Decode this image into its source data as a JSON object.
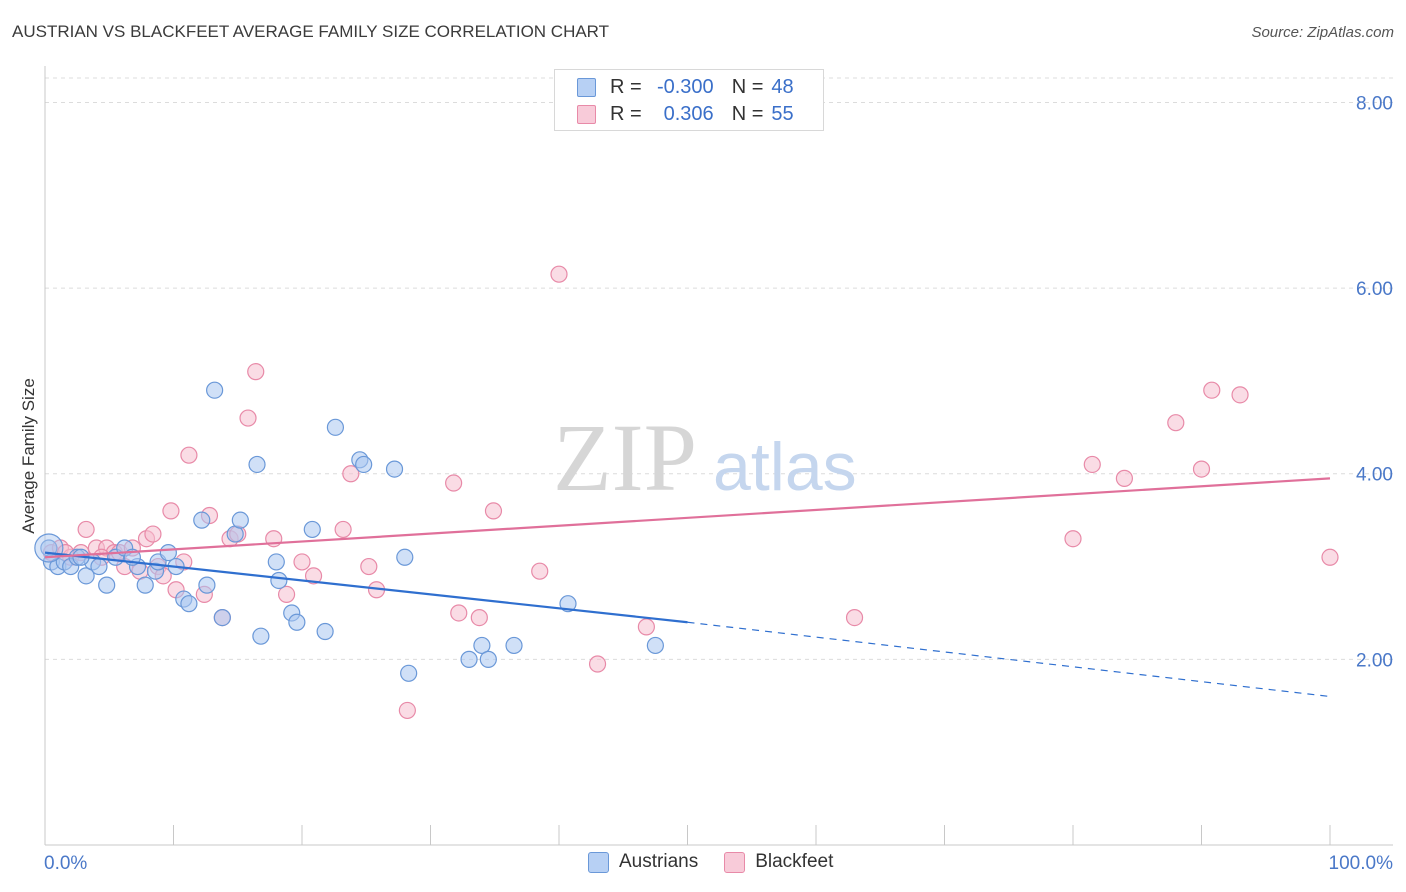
{
  "header": {
    "title": "AUSTRIAN VS BLACKFEET AVERAGE FAMILY SIZE CORRELATION CHART",
    "source": "Source: ZipAtlas.com"
  },
  "legend": {
    "rows": [
      {
        "r_label": "R =",
        "r_value": "-0.300",
        "n_label": "N =",
        "n_value": "48"
      },
      {
        "r_label": "R =",
        "r_value": "0.306",
        "n_label": "N =",
        "n_value": "55"
      }
    ]
  },
  "watermark": {
    "zip": "ZIP",
    "atlas": "atlas"
  },
  "colors": {
    "austrians_fill": "#a9c6f0",
    "austrians_stroke": "#6a98d8",
    "austrians_line": "#2f6fcf",
    "blackfeet_fill": "#f6bfd0",
    "blackfeet_stroke": "#e88aa8",
    "blackfeet_line": "#e0709a",
    "axis_text": "#4a78c8"
  },
  "chart_data": {
    "type": "scatter",
    "title": "AUSTRIAN VS BLACKFEET AVERAGE FAMILY SIZE CORRELATION CHART",
    "xlabel": "",
    "ylabel": "Average Family Size",
    "x_tick_labels": [
      "0.0%",
      "100.0%"
    ],
    "y_tick_labels": [
      "2.00",
      "4.00",
      "6.00",
      "8.00"
    ],
    "y_ticks": [
      2,
      4,
      6,
      8
    ],
    "xlim": [
      0,
      100
    ],
    "ylim": [
      0,
      8.35
    ],
    "grid": true,
    "legend_position": "top-center",
    "series": [
      {
        "name": "Austrians",
        "r": -0.3,
        "n": 48,
        "trend": {
          "x0": 0,
          "y0": 3.15,
          "x1": 50,
          "y1": 2.4,
          "dashed_to_x": 100,
          "dashed_to_y": 1.6
        },
        "points": [
          [
            0.3,
            3.2
          ],
          [
            0.5,
            3.05
          ],
          [
            1.0,
            3.0
          ],
          [
            1.5,
            3.05
          ],
          [
            2.0,
            3.0
          ],
          [
            2.5,
            3.1
          ],
          [
            3.2,
            2.9
          ],
          [
            3.7,
            3.05
          ],
          [
            4.2,
            3.0
          ],
          [
            4.8,
            2.8
          ],
          [
            5.5,
            3.1
          ],
          [
            6.2,
            3.2
          ],
          [
            7.2,
            3.0
          ],
          [
            7.8,
            2.8
          ],
          [
            8.6,
            2.95
          ],
          [
            8.8,
            3.05
          ],
          [
            9.6,
            3.15
          ],
          [
            10.2,
            3.0
          ],
          [
            10.8,
            2.65
          ],
          [
            11.2,
            2.6
          ],
          [
            12.6,
            2.8
          ],
          [
            12.2,
            3.5
          ],
          [
            13.2,
            4.9
          ],
          [
            13.8,
            2.45
          ],
          [
            14.8,
            3.35
          ],
          [
            15.2,
            3.5
          ],
          [
            16.5,
            4.1
          ],
          [
            16.8,
            2.25
          ],
          [
            18.0,
            3.05
          ],
          [
            18.2,
            2.85
          ],
          [
            19.2,
            2.5
          ],
          [
            19.6,
            2.4
          ],
          [
            20.8,
            3.4
          ],
          [
            21.8,
            2.3
          ],
          [
            22.6,
            4.5
          ],
          [
            24.5,
            4.15
          ],
          [
            24.8,
            4.1
          ],
          [
            27.2,
            4.05
          ],
          [
            28.0,
            3.1
          ],
          [
            28.3,
            1.85
          ],
          [
            33.0,
            2.0
          ],
          [
            34.0,
            2.15
          ],
          [
            34.5,
            2.0
          ],
          [
            36.5,
            2.15
          ],
          [
            40.7,
            2.6
          ],
          [
            47.5,
            2.15
          ],
          [
            2.8,
            3.1
          ],
          [
            6.8,
            3.1
          ]
        ]
      },
      {
        "name": "Blackfeet",
        "r": 0.306,
        "n": 55,
        "trend": {
          "x0": 0,
          "y0": 3.1,
          "x1": 100,
          "y1": 3.95
        },
        "points": [
          [
            0.5,
            3.15
          ],
          [
            1.2,
            3.2
          ],
          [
            2.0,
            3.1
          ],
          [
            2.8,
            3.15
          ],
          [
            3.2,
            3.4
          ],
          [
            4.0,
            3.2
          ],
          [
            4.8,
            3.2
          ],
          [
            5.4,
            3.15
          ],
          [
            5.8,
            3.15
          ],
          [
            6.2,
            3.0
          ],
          [
            6.8,
            3.2
          ],
          [
            7.4,
            2.95
          ],
          [
            7.9,
            3.3
          ],
          [
            8.4,
            3.35
          ],
          [
            8.8,
            3.0
          ],
          [
            9.2,
            2.9
          ],
          [
            9.8,
            3.6
          ],
          [
            10.2,
            2.75
          ],
          [
            10.8,
            3.05
          ],
          [
            11.2,
            4.2
          ],
          [
            12.4,
            2.7
          ],
          [
            12.8,
            3.55
          ],
          [
            13.8,
            2.45
          ],
          [
            14.4,
            3.3
          ],
          [
            15.0,
            3.35
          ],
          [
            15.8,
            4.6
          ],
          [
            16.4,
            5.1
          ],
          [
            17.8,
            3.3
          ],
          [
            18.8,
            2.7
          ],
          [
            20.0,
            3.05
          ],
          [
            20.9,
            2.9
          ],
          [
            23.2,
            3.4
          ],
          [
            23.8,
            4.0
          ],
          [
            25.2,
            3.0
          ],
          [
            25.8,
            2.75
          ],
          [
            28.2,
            1.45
          ],
          [
            31.8,
            3.9
          ],
          [
            32.2,
            2.5
          ],
          [
            33.8,
            2.45
          ],
          [
            34.9,
            3.6
          ],
          [
            38.5,
            2.95
          ],
          [
            40.0,
            6.15
          ],
          [
            43.0,
            1.95
          ],
          [
            46.8,
            2.35
          ],
          [
            63.0,
            2.45
          ],
          [
            80.0,
            3.3
          ],
          [
            81.5,
            4.1
          ],
          [
            84.0,
            3.95
          ],
          [
            88.0,
            4.55
          ],
          [
            90.0,
            4.05
          ],
          [
            90.8,
            4.9
          ],
          [
            93.0,
            4.85
          ],
          [
            100.0,
            3.1
          ],
          [
            1.6,
            3.15
          ],
          [
            4.4,
            3.1
          ]
        ]
      }
    ]
  },
  "bottom_legend": {
    "items": [
      "Austrians",
      "Blackfeet"
    ]
  }
}
